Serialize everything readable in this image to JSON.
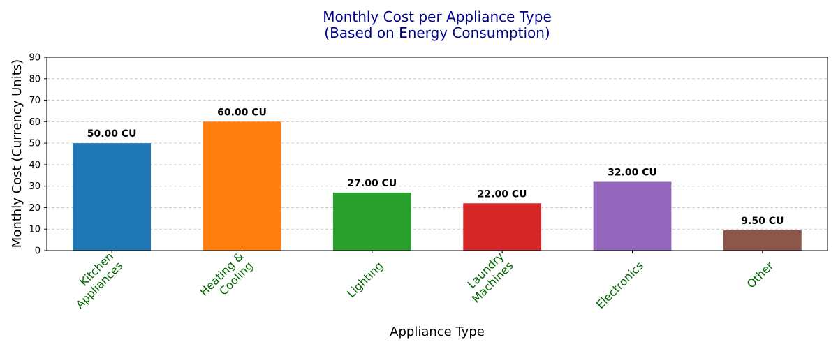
{
  "chart_data": {
    "type": "bar",
    "title_lines": [
      "Monthly Cost per Appliance Type",
      "(Based on Energy Consumption)"
    ],
    "xlabel": "Appliance Type",
    "ylabel": "Monthly Cost (Currency Units)",
    "categories": [
      [
        "Kitchen",
        "Appliances"
      ],
      [
        "Heating &",
        "Cooling"
      ],
      [
        "Lighting"
      ],
      [
        "Laundry",
        "Machines"
      ],
      [
        "Electronics"
      ],
      [
        "Other"
      ]
    ],
    "values": [
      50.0,
      60.0,
      27.0,
      22.0,
      32.0,
      9.5
    ],
    "data_labels": [
      "50.00 CU",
      "60.00 CU",
      "27.00 CU",
      "22.00 CU",
      "32.00 CU",
      "9.50 CU"
    ],
    "colors": [
      "#1f77b4",
      "#ff7f0e",
      "#2ca02c",
      "#d62728",
      "#9467bd",
      "#8c564b"
    ],
    "ylim": [
      0,
      90
    ],
    "yticks": [
      0,
      10,
      20,
      30,
      40,
      50,
      60,
      70,
      80,
      90
    ],
    "grid": "y-dashed",
    "tick_label_color": "#006400",
    "title_color": "#00008b"
  }
}
